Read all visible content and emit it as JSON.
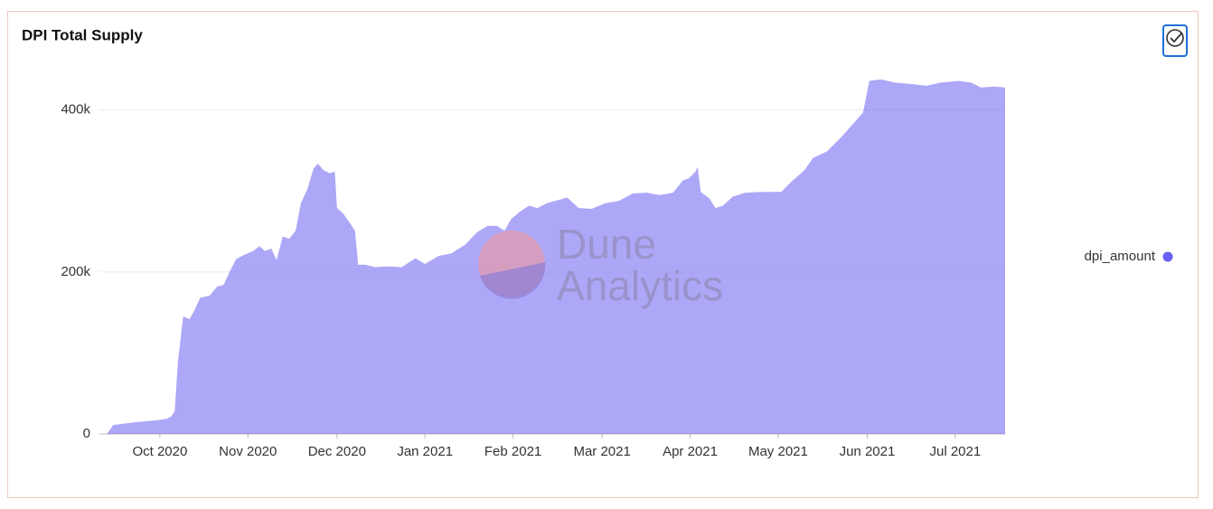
{
  "chart_data": {
    "type": "area",
    "title": "DPI Total Supply",
    "watermark": [
      "Dune",
      "Analytics"
    ],
    "x": [
      2020.693,
      2020.7,
      2020.706,
      2020.727,
      2020.748,
      2020.757,
      2020.761,
      2020.764,
      2020.767,
      2020.772,
      2020.778,
      2020.782,
      2020.788,
      2020.797,
      2020.804,
      2020.81,
      2020.816,
      2020.822,
      2020.829,
      2020.838,
      2020.844,
      2020.849,
      2020.855,
      2020.86,
      2020.866,
      2020.872,
      2020.878,
      2020.883,
      2020.889,
      2020.895,
      2020.899,
      2020.904,
      2020.91,
      2020.915,
      2020.917,
      2020.923,
      2020.93,
      2020.934,
      2020.937,
      2020.944,
      2020.953,
      2020.966,
      2020.978,
      2020.991,
      2021.0,
      2021.013,
      2021.025,
      2021.038,
      2021.049,
      2021.059,
      2021.068,
      2021.075,
      2021.081,
      2021.089,
      2021.098,
      2021.106,
      2021.115,
      2021.123,
      2021.134,
      2021.145,
      2021.157,
      2021.17,
      2021.183,
      2021.196,
      2021.209,
      2021.221,
      2021.234,
      2021.243,
      2021.249,
      2021.255,
      2021.257,
      2021.26,
      2021.268,
      2021.274,
      2021.281,
      2021.29,
      2021.302,
      2021.319,
      2021.336,
      2021.345,
      2021.358,
      2021.366,
      2021.379,
      2021.392,
      2021.405,
      2021.413,
      2021.419,
      2021.43,
      2021.443,
      2021.46,
      2021.473,
      2021.486,
      2021.503,
      2021.515,
      2021.524,
      2021.537,
      2021.547
    ],
    "series": [
      {
        "name": "dpi_amount",
        "color": "#6a5ef0",
        "values": [
          0,
          0,
          11000,
          14500,
          17000,
          19000,
          22000,
          28000,
          89000,
          145000,
          142000,
          151000,
          168000,
          171000,
          182000,
          184000,
          201000,
          216000,
          221000,
          226000,
          232000,
          226000,
          229000,
          215000,
          244000,
          241000,
          251000,
          285000,
          302000,
          328000,
          334000,
          326000,
          322000,
          324000,
          279000,
          272000,
          259000,
          251000,
          209000,
          209000,
          206000,
          207000,
          206000,
          217000,
          210000,
          220000,
          223000,
          234000,
          249000,
          257000,
          257000,
          251000,
          265000,
          274000,
          282000,
          279000,
          285000,
          288000,
          292000,
          279000,
          278000,
          285000,
          288000,
          297000,
          298000,
          295000,
          298000,
          313000,
          316000,
          324000,
          330000,
          299000,
          291000,
          279000,
          282000,
          293000,
          298000,
          299000,
          299000,
          311000,
          326000,
          341000,
          349000,
          366000,
          385000,
          397000,
          436000,
          438000,
          434000,
          432000,
          430000,
          434000,
          436000,
          434000,
          428000,
          429000,
          428000
        ]
      }
    ],
    "xlim": [
      2020.693,
      2021.547
    ],
    "xticks": [
      {
        "value": 2020.75,
        "label": "Oct 2020"
      },
      {
        "value": 2020.833,
        "label": "Nov 2020"
      },
      {
        "value": 2020.917,
        "label": "Dec 2020"
      },
      {
        "value": 2021.0,
        "label": "Jan 2021"
      },
      {
        "value": 2021.083,
        "label": "Feb 2021"
      },
      {
        "value": 2021.167,
        "label": "Mar 2021"
      },
      {
        "value": 2021.25,
        "label": "Apr 2021"
      },
      {
        "value": 2021.333,
        "label": "May 2021"
      },
      {
        "value": 2021.417,
        "label": "Jun 2021"
      },
      {
        "value": 2021.5,
        "label": "Jul 2021"
      }
    ],
    "ylim": [
      0,
      450000
    ],
    "yticks": [
      0,
      {
        "value": 200000,
        "label": "200k"
      },
      {
        "value": 400000,
        "label": "400k"
      }
    ],
    "grid": true,
    "legend": "right"
  }
}
